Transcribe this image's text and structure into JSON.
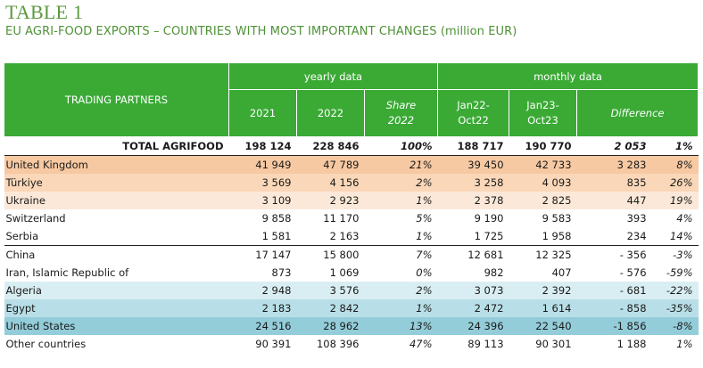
{
  "title": "TABLE 1",
  "subtitle": "EU AGRI-FOOD EXPORTS – COUNTRIES WITH MOST IMPORTANT CHANGES (million EUR)",
  "header": {
    "partners": "TRADING PARTNERS",
    "yearly": "yearly data",
    "monthly": "monthly data",
    "y2021": "2021",
    "y2022": "2022",
    "share1": "Share",
    "share2": "2022",
    "jan22a": "Jan22-",
    "jan22b": "Oct22",
    "jan23a": "Jan23-",
    "jan23b": "Oct23",
    "difference": "Difference"
  },
  "colors": {
    "header_green": "#3aaa35",
    "title_green": "#5b9a3d",
    "orange_dark": "#f7c9a2",
    "orange_mid": "#fad7b8",
    "orange_light": "#fce8d8",
    "blue_light": "#d9eef2",
    "blue_mid": "#b8dfe7",
    "blue_dark": "#93cdd9"
  },
  "rows": [
    {
      "name": "TOTAL AGRIFOOD",
      "v2021": "198 124",
      "v2022": "228 846",
      "share": "100%",
      "m22": "188 717",
      "m23": "190 770",
      "diff": "2 053",
      "pct": "1%"
    },
    {
      "name": "United Kingdom",
      "v2021": "41 949",
      "v2022": "47 789",
      "share": "21%",
      "m22": "39 450",
      "m23": "42 733",
      "diff": "3 283",
      "pct": "8%"
    },
    {
      "name": "Türkiye",
      "v2021": "3 569",
      "v2022": "4 156",
      "share": "2%",
      "m22": "3 258",
      "m23": "4 093",
      "diff": "835",
      "pct": "26%"
    },
    {
      "name": "Ukraine",
      "v2021": "3 109",
      "v2022": "2 923",
      "share": "1%",
      "m22": "2 378",
      "m23": "2 825",
      "diff": "447",
      "pct": "19%"
    },
    {
      "name": "Switzerland",
      "v2021": "9 858",
      "v2022": "11 170",
      "share": "5%",
      "m22": "9 190",
      "m23": "9 583",
      "diff": "393",
      "pct": "4%"
    },
    {
      "name": "Serbia",
      "v2021": "1 581",
      "v2022": "2 163",
      "share": "1%",
      "m22": "1 725",
      "m23": "1 958",
      "diff": "234",
      "pct": "14%"
    },
    {
      "name": "China",
      "v2021": "17 147",
      "v2022": "15 800",
      "share": "7%",
      "m22": "12 681",
      "m23": "12 325",
      "diff": "- 356",
      "pct": "-3%"
    },
    {
      "name": "Iran, Islamic Republic of",
      "v2021": "873",
      "v2022": "1 069",
      "share": "0%",
      "m22": "982",
      "m23": "407",
      "diff": "- 576",
      "pct": "-59%"
    },
    {
      "name": "Algeria",
      "v2021": "2 948",
      "v2022": "3 576",
      "share": "2%",
      "m22": "3 073",
      "m23": "2 392",
      "diff": "- 681",
      "pct": "-22%"
    },
    {
      "name": "Egypt",
      "v2021": "2 183",
      "v2022": "2 842",
      "share": "1%",
      "m22": "2 472",
      "m23": "1 614",
      "diff": "- 858",
      "pct": "-35%"
    },
    {
      "name": "United States",
      "v2021": "24 516",
      "v2022": "28 962",
      "share": "13%",
      "m22": "24 396",
      "m23": "22 540",
      "diff": "-1 856",
      "pct": "-8%"
    },
    {
      "name": "Other countries",
      "v2021": "90 391",
      "v2022": "108 396",
      "share": "47%",
      "m22": "89 113",
      "m23": "90 301",
      "diff": "1 188",
      "pct": "1%"
    }
  ]
}
